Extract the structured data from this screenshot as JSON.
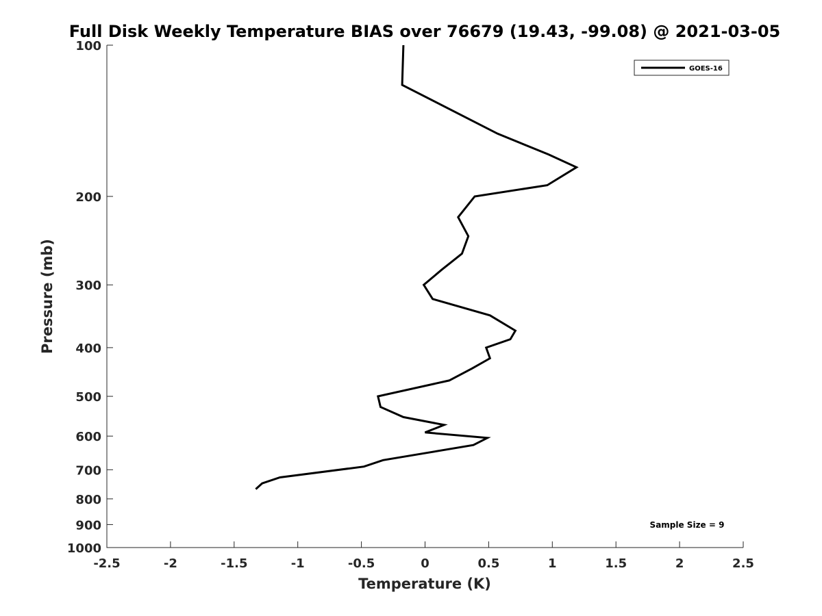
{
  "chart_data": {
    "type": "line",
    "title": "Full Disk Weekly Temperature BIAS over 76679 (19.43, -99.08) @ 2021-03-05",
    "xlabel": "Temperature (K)",
    "ylabel": "Pressure (mb)",
    "xlim": [
      -2.5,
      2.5
    ],
    "ylim": [
      100,
      1000
    ],
    "y_scale": "log",
    "y_reversed": true,
    "x_ticks": [
      -2.5,
      -2,
      -1.5,
      -1,
      -0.5,
      0,
      0.5,
      1,
      1.5,
      2,
      2.5
    ],
    "x_tick_labels": [
      "-2.5",
      "-2",
      "-1.5",
      "-1",
      "-0.5",
      "0",
      "0.5",
      "1",
      "1.5",
      "2",
      "2.5"
    ],
    "y_ticks": [
      100,
      200,
      300,
      400,
      500,
      600,
      700,
      800,
      900,
      1000
    ],
    "y_tick_labels": [
      "100",
      "200",
      "300",
      "400",
      "500",
      "600",
      "700",
      "800",
      "900",
      "1000"
    ],
    "grid": false,
    "legend_position": "top-right",
    "series": [
      {
        "name": "GOES-16",
        "color": "#000000",
        "points": [
          {
            "x": -0.17,
            "p": 100
          },
          {
            "x": -0.18,
            "p": 120
          },
          {
            "x": 0.57,
            "p": 150
          },
          {
            "x": 0.97,
            "p": 165
          },
          {
            "x": 1.19,
            "p": 175
          },
          {
            "x": 0.96,
            "p": 190
          },
          {
            "x": 0.39,
            "p": 200
          },
          {
            "x": 0.26,
            "p": 220
          },
          {
            "x": 0.34,
            "p": 240
          },
          {
            "x": 0.29,
            "p": 260
          },
          {
            "x": 0.13,
            "p": 280
          },
          {
            "x": -0.01,
            "p": 300
          },
          {
            "x": 0.06,
            "p": 320
          },
          {
            "x": 0.51,
            "p": 345
          },
          {
            "x": 0.71,
            "p": 370
          },
          {
            "x": 0.67,
            "p": 385
          },
          {
            "x": 0.48,
            "p": 400
          },
          {
            "x": 0.51,
            "p": 420
          },
          {
            "x": 0.37,
            "p": 440
          },
          {
            "x": 0.19,
            "p": 465
          },
          {
            "x": -0.37,
            "p": 500
          },
          {
            "x": -0.35,
            "p": 525
          },
          {
            "x": -0.17,
            "p": 550
          },
          {
            "x": 0.15,
            "p": 570
          },
          {
            "x": 0.0,
            "p": 590
          },
          {
            "x": 0.49,
            "p": 605
          },
          {
            "x": 0.38,
            "p": 625
          },
          {
            "x": -0.02,
            "p": 650
          },
          {
            "x": -0.33,
            "p": 670
          },
          {
            "x": -0.48,
            "p": 690
          },
          {
            "x": -1.14,
            "p": 725
          },
          {
            "x": -1.28,
            "p": 745
          },
          {
            "x": -1.33,
            "p": 765
          }
        ]
      }
    ],
    "annotations": [
      {
        "text": "Sample Size = 9",
        "position": "bottom-right"
      }
    ]
  }
}
